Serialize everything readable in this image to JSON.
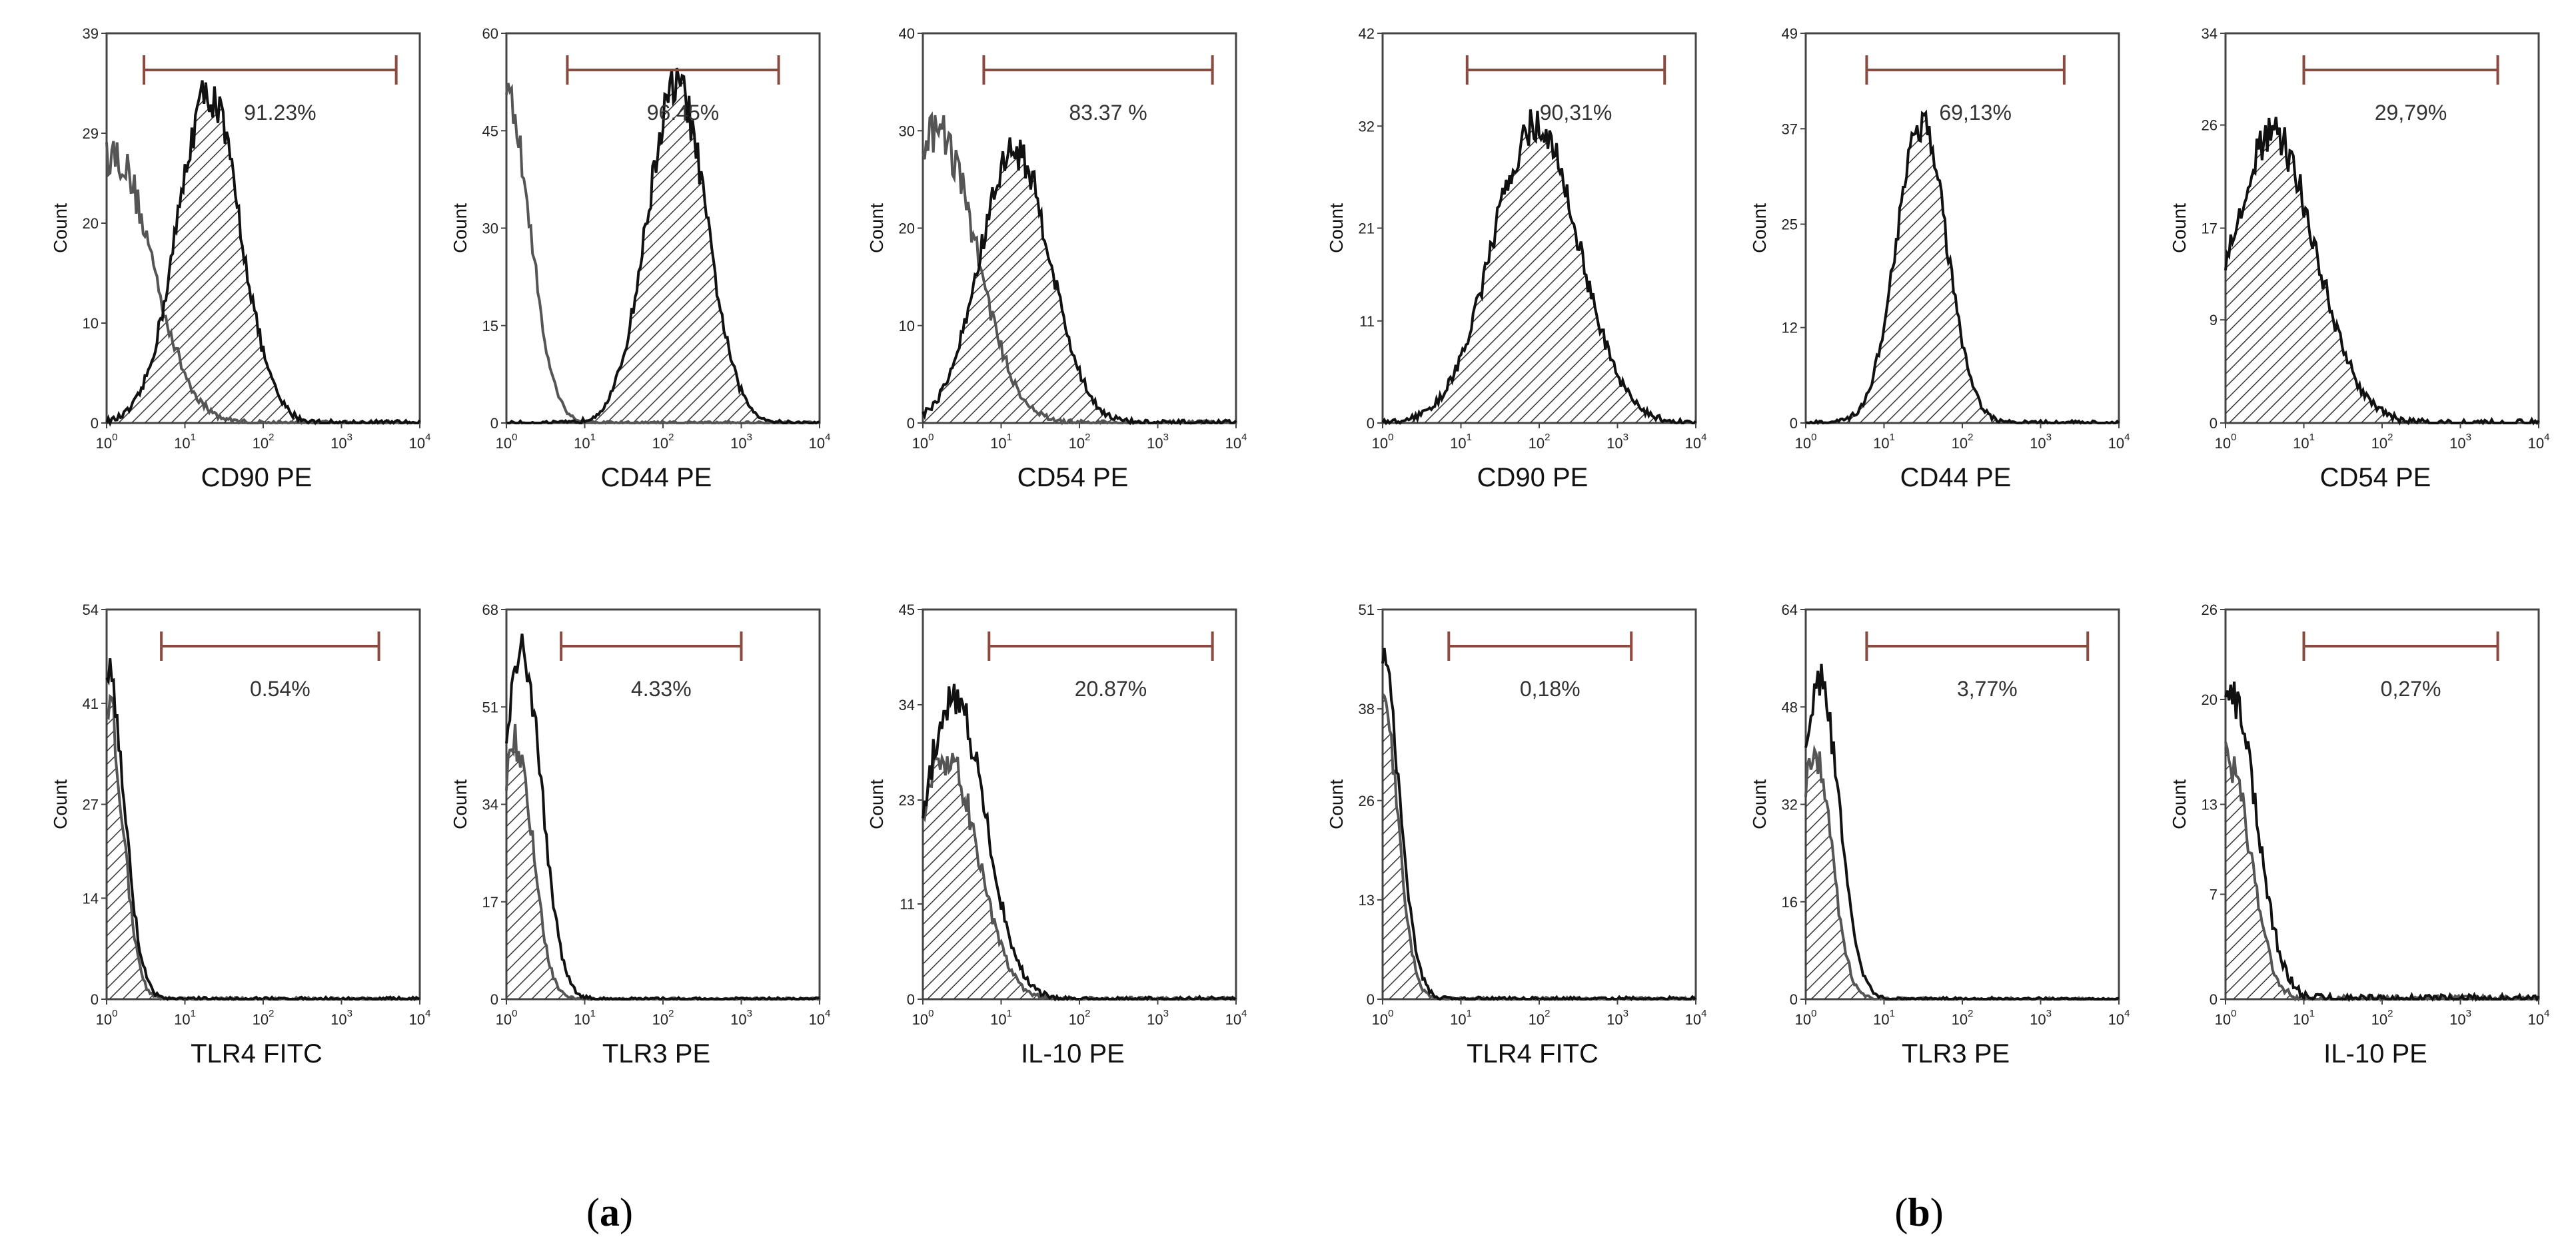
{
  "chart_data": {
    "type": "histogram",
    "panel_labels": [
      {
        "id": "a",
        "prefix": "(",
        "letter": "a",
        "suffix": ")"
      },
      {
        "id": "b",
        "prefix": "(",
        "letter": "b",
        "suffix": ")"
      }
    ],
    "x_scale": "log",
    "xlim": [
      1,
      10000
    ],
    "x_ticks": [
      {
        "exp": 0
      },
      {
        "exp": 1
      },
      {
        "exp": 2
      },
      {
        "exp": 3
      },
      {
        "exp": 4
      }
    ],
    "x_tick_base": "10",
    "ylabel": "Count",
    "colors": {
      "sample": "#111111",
      "isotype": "#555555",
      "gate": "#8b4a40",
      "axes": "#444444"
    },
    "plots": [
      {
        "group": "a",
        "row": 0,
        "col": 0,
        "xlabel": "CD90 PE",
        "ymax": 39,
        "yticks": [
          "0",
          "10",
          "20",
          "29",
          "39"
        ],
        "gate": {
          "from": 3,
          "to": 5000,
          "label": "91.23%"
        },
        "sample": {
          "peak": 20,
          "sigma": 0.4,
          "height": 33
        },
        "control": {
          "peak": 1.2,
          "sigma": 0.5,
          "height": 27
        },
        "control_hatched": false
      },
      {
        "group": "a",
        "row": 0,
        "col": 1,
        "xlabel": "CD44 PE",
        "ymax": 60,
        "yticks": [
          "0",
          "15",
          "30",
          "45",
          "60"
        ],
        "gate": {
          "from": 6,
          "to": 3000,
          "label": "96.45%"
        },
        "sample": {
          "peak": 150,
          "sigma": 0.38,
          "height": 52
        },
        "control": {
          "peak": 1.0,
          "sigma": 0.3,
          "height": 50
        },
        "control_hatched": false
      },
      {
        "group": "a",
        "row": 0,
        "col": 2,
        "xlabel": "CD54 PE",
        "ymax": 40,
        "yticks": [
          "0",
          "10",
          "20",
          "30",
          "40"
        ],
        "gate": {
          "from": 6,
          "to": 5000,
          "label": "83.37 %"
        },
        "sample": {
          "peak": 15,
          "sigma": 0.45,
          "height": 28
        },
        "control": {
          "peak": 1.5,
          "sigma": 0.5,
          "height": 30
        },
        "control_hatched": false
      },
      {
        "group": "a",
        "row": 1,
        "col": 0,
        "xlabel": "TLR4 FITC",
        "ymax": 54,
        "yticks": [
          "0",
          "14",
          "27",
          "41",
          "54"
        ],
        "gate": {
          "from": 5,
          "to": 3000,
          "label": "0.54%"
        },
        "sample": {
          "peak": 1.0,
          "sigma": 0.22,
          "height": 46
        },
        "control": {
          "peak": 1.0,
          "sigma": 0.2,
          "height": 42
        },
        "control_hatched": true
      },
      {
        "group": "a",
        "row": 1,
        "col": 1,
        "xlabel": "TLR3 PE",
        "ymax": 68,
        "yticks": [
          "0",
          "17",
          "34",
          "51",
          "68"
        ],
        "gate": {
          "from": 5,
          "to": 1000,
          "label": "4.33%"
        },
        "sample": {
          "peak": 1.6,
          "sigma": 0.25,
          "height": 60
        },
        "control": {
          "peak": 1.3,
          "sigma": 0.22,
          "height": 45
        },
        "control_hatched": true
      },
      {
        "group": "a",
        "row": 1,
        "col": 2,
        "xlabel": "IL-10 PE",
        "ymax": 45,
        "yticks": [
          "0",
          "11",
          "23",
          "34",
          "45"
        ],
        "gate": {
          "from": 7,
          "to": 5000,
          "label": "20.87%"
        },
        "sample": {
          "peak": 2.5,
          "sigma": 0.4,
          "height": 35
        },
        "control": {
          "peak": 2.0,
          "sigma": 0.4,
          "height": 28
        },
        "control_hatched": true
      },
      {
        "group": "b",
        "row": 0,
        "col": 0,
        "xlabel": "CD90 PE",
        "ymax": 42,
        "yticks": [
          "0",
          "11",
          "21",
          "32",
          "42"
        ],
        "gate": {
          "from": 12,
          "to": 4000,
          "label": "90,31%"
        },
        "sample": {
          "peak": 90,
          "sigma": 0.55,
          "height": 32
        },
        "control": null,
        "control_hatched": false
      },
      {
        "group": "b",
        "row": 0,
        "col": 1,
        "xlabel": "CD44 PE",
        "ymax": 49,
        "yticks": [
          "0",
          "12",
          "25",
          "37",
          "49"
        ],
        "gate": {
          "from": 6,
          "to": 2000,
          "label": "69,13%"
        },
        "sample": {
          "peak": 30,
          "sigma": 0.32,
          "height": 38
        },
        "control": null,
        "control_hatched": false
      },
      {
        "group": "b",
        "row": 0,
        "col": 2,
        "xlabel": "CD54 PE",
        "ymax": 34,
        "yticks": [
          "0",
          "9",
          "17",
          "26",
          "34"
        ],
        "gate": {
          "from": 10,
          "to": 3000,
          "label": "29,79%"
        },
        "sample": {
          "peak": 4,
          "sigma": 0.55,
          "height": 25
        },
        "control": null,
        "control_hatched": false
      },
      {
        "group": "b",
        "row": 1,
        "col": 0,
        "xlabel": "TLR4 FITC",
        "ymax": 51,
        "yticks": [
          "0",
          "13",
          "26",
          "38",
          "51"
        ],
        "gate": {
          "from": 7,
          "to": 1500,
          "label": "0,18%"
        },
        "sample": {
          "peak": 1.0,
          "sigma": 0.22,
          "height": 44
        },
        "control": {
          "peak": 1.0,
          "sigma": 0.2,
          "height": 38
        },
        "control_hatched": true
      },
      {
        "group": "b",
        "row": 1,
        "col": 1,
        "xlabel": "TLR3 PE",
        "ymax": 64,
        "yticks": [
          "0",
          "16",
          "32",
          "48",
          "64"
        ],
        "gate": {
          "from": 6,
          "to": 4000,
          "label": "3,77%"
        },
        "sample": {
          "peak": 1.5,
          "sigma": 0.25,
          "height": 52
        },
        "control": {
          "peak": 1.3,
          "sigma": 0.22,
          "height": 40
        },
        "control_hatched": true
      },
      {
        "group": "b",
        "row": 1,
        "col": 2,
        "xlabel": "IL-10 PE",
        "ymax": 26,
        "yticks": [
          "0",
          "7",
          "13",
          "20",
          "26"
        ],
        "gate": {
          "from": 10,
          "to": 3000,
          "label": "0,27%"
        },
        "sample": {
          "peak": 1.2,
          "sigma": 0.32,
          "height": 20
        },
        "control": {
          "peak": 1.1,
          "sigma": 0.28,
          "height": 16
        },
        "control_hatched": true
      }
    ]
  }
}
